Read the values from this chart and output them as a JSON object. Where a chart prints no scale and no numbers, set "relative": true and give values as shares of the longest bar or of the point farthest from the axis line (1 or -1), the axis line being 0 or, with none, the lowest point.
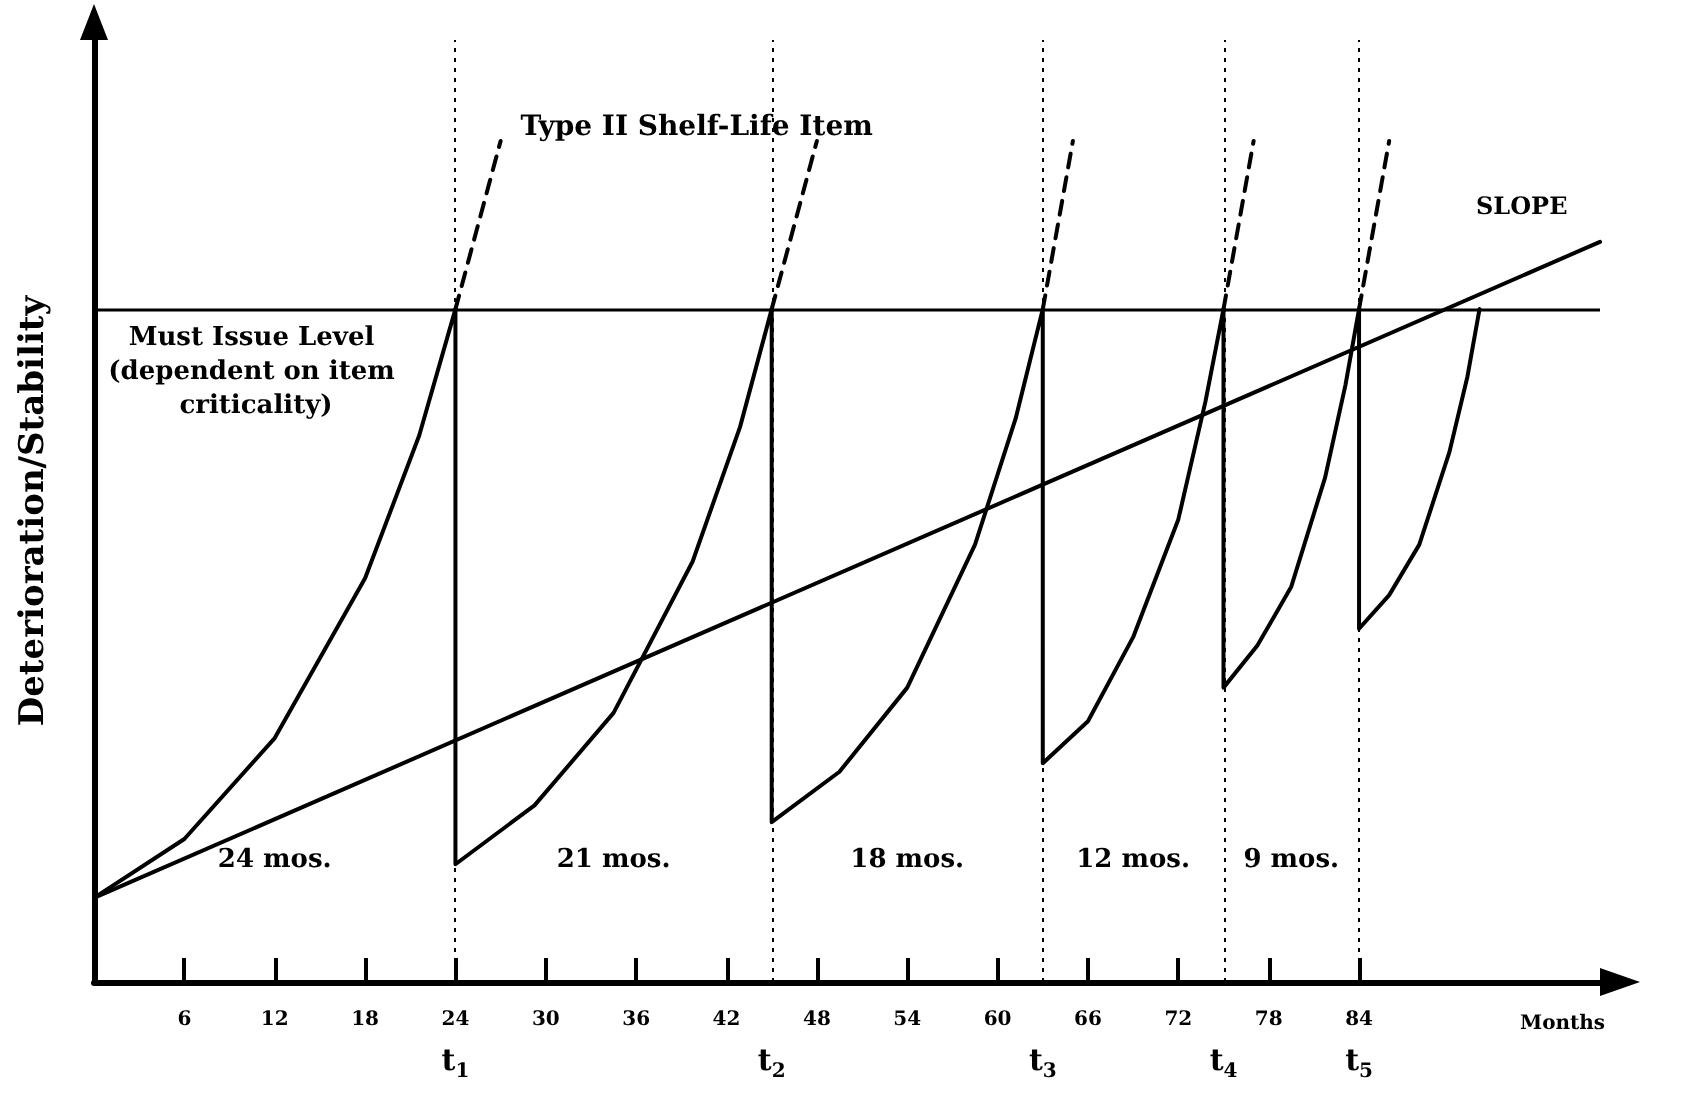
{
  "chart_data": {
    "type": "line",
    "relative": true,
    "xlabel": "Months",
    "ylabel": "Deterioration/Stability",
    "xlim": [
      0,
      100
    ],
    "xticks": [
      6,
      12,
      18,
      24,
      30,
      36,
      42,
      48,
      54,
      60,
      66,
      72,
      78,
      84
    ],
    "grid": false,
    "marker": "none",
    "series": [
      {
        "color": "#000000",
        "line_style": "solid",
        "x": [
          0,
          6,
          12,
          18,
          21.6,
          24,
          24,
          29.25,
          34.5,
          39.75,
          42.9,
          45,
          45,
          49.5,
          54,
          58.5,
          61.2,
          63,
          63,
          66,
          69,
          72,
          73.8,
          75,
          75,
          77.25,
          79.5,
          81.75,
          83.1,
          84,
          84,
          86,
          88,
          90,
          91.2,
          92
        ],
        "values": [
          0.1,
          0.17,
          0.29,
          0.48,
          0.65,
          0.8,
          0.14,
          0.21,
          0.32,
          0.5,
          0.66,
          0.8,
          0.19,
          0.25,
          0.35,
          0.52,
          0.67,
          0.8,
          0.26,
          0.31,
          0.41,
          0.55,
          0.69,
          0.8,
          0.35,
          0.4,
          0.47,
          0.6,
          0.71,
          0.8,
          0.42,
          0.46,
          0.52,
          0.63,
          0.72,
          0.8
        ]
      },
      {
        "name": "Type II Shelf-Life Item",
        "color": "#000000",
        "line_style": "dashed",
        "x": [
          24,
          27,
          null,
          45,
          48,
          null,
          63,
          65,
          null,
          75,
          77,
          null,
          84,
          86
        ],
        "values": [
          0.8,
          1.0,
          null,
          0.8,
          1.0,
          null,
          0.8,
          1.0,
          null,
          0.8,
          1.0,
          null,
          0.8,
          1.0
        ]
      },
      {
        "name": "SLOPE",
        "color": "#000000",
        "line_style": "solid",
        "x": [
          0,
          100
        ],
        "values": [
          0.1,
          0.88
        ]
      }
    ],
    "ref_lines": [
      {
        "axis": "y",
        "value": 0.8,
        "label": "Must Issue Level (dependent on item criticality)",
        "line_style": "solid",
        "color": "#000000"
      },
      {
        "axis": "x",
        "value": 24,
        "label": "t$_{1}$",
        "line_style": "dotted",
        "color": "#000000"
      },
      {
        "axis": "x",
        "value": 45,
        "label": "t$_{2}$",
        "line_style": "dotted",
        "color": "#000000"
      },
      {
        "axis": "x",
        "value": 63,
        "label": "t$_{3}$",
        "line_style": "dotted",
        "color": "#000000"
      },
      {
        "axis": "x",
        "value": 75,
        "label": "t$_{4}$",
        "line_style": "dotted",
        "color": "#000000"
      },
      {
        "axis": "x",
        "value": 84,
        "label": "t$_{5}$",
        "line_style": "dotted",
        "color": "#000000"
      }
    ],
    "annotations": [
      "24 mos.",
      "21 mos.",
      "18 mos.",
      "12 mos.",
      "9 mos."
    ]
  }
}
